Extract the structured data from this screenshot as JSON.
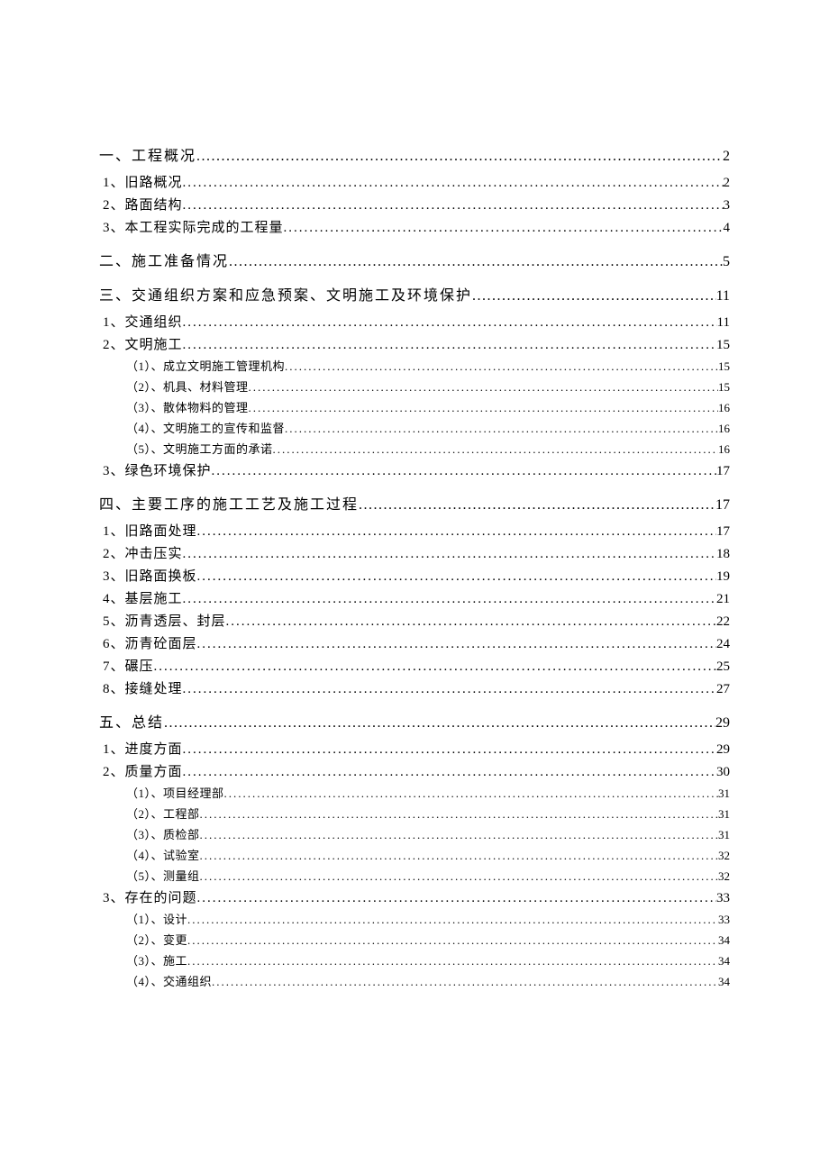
{
  "colors": {
    "text": "#000000",
    "background": "#ffffff"
  },
  "typography": {
    "font_family": "SimSun",
    "level1_fontsize_pt": 12,
    "level2_fontsize_pt": 11,
    "level3_fontsize_pt": 10
  },
  "toc": [
    {
      "level": 1,
      "label": "一、工程概况",
      "page": "2"
    },
    {
      "level": 2,
      "label": "1、旧路概况",
      "page": "2"
    },
    {
      "level": 2,
      "label": "2、路面结构",
      "page": "3"
    },
    {
      "level": 2,
      "label": "3、本工程实际完成的工程量",
      "page": "4"
    },
    {
      "level": 1,
      "label": "二、施工准备情况",
      "page": "5"
    },
    {
      "level": 1,
      "label": "三、交通组织方案和应急预案、文明施工及环境保护",
      "page": "11"
    },
    {
      "level": 2,
      "label": "1、交通组织",
      "page": "11"
    },
    {
      "level": 2,
      "label": "2、文明施工",
      "page": "15"
    },
    {
      "level": 3,
      "label": "（1）、成立文明施工管理机构",
      "page": "15"
    },
    {
      "level": 3,
      "label": "（2）、机具、材料管理",
      "page": "15"
    },
    {
      "level": 3,
      "label": "（3）、散体物料的管理",
      "page": "16"
    },
    {
      "level": 3,
      "label": "（4）、文明施工的宣传和监督",
      "page": "16"
    },
    {
      "level": 3,
      "label": "（5）、文明施工方面的承诺",
      "page": "16"
    },
    {
      "level": 2,
      "label": "3、绿色环境保护",
      "page": "17"
    },
    {
      "level": 1,
      "label": "四、主要工序的施工工艺及施工过程",
      "page": "17"
    },
    {
      "level": 2,
      "label": "1、旧路面处理",
      "page": "17"
    },
    {
      "level": 2,
      "label": "2、冲击压实",
      "page": "18"
    },
    {
      "level": 2,
      "label": "3、旧路面换板",
      "page": "19"
    },
    {
      "level": 2,
      "label": "4、基层施工",
      "page": "21"
    },
    {
      "level": 2,
      "label": "5、沥青透层、封层",
      "page": "22"
    },
    {
      "level": 2,
      "label": "6、沥青砼面层",
      "page": "24"
    },
    {
      "level": 2,
      "label": "7、碾压",
      "page": "25"
    },
    {
      "level": 2,
      "label": "8、接缝处理",
      "page": "27"
    },
    {
      "level": 1,
      "label": "五、总结",
      "page": "29"
    },
    {
      "level": 2,
      "label": "1、进度方面",
      "page": "29"
    },
    {
      "level": 2,
      "label": "2、质量方面",
      "page": "30"
    },
    {
      "level": 3,
      "label": "（1）、项目经理部",
      "page": "31"
    },
    {
      "level": 3,
      "label": "（2）、工程部",
      "page": "31"
    },
    {
      "level": 3,
      "label": "（3）、质检部",
      "page": "31"
    },
    {
      "level": 3,
      "label": "（4）、试验室",
      "page": "32"
    },
    {
      "level": 3,
      "label": "（5）、测量组",
      "page": "32"
    },
    {
      "level": 2,
      "label": "3、存在的问题",
      "page": "33"
    },
    {
      "level": 3,
      "label": "（1）、设计",
      "page": "33"
    },
    {
      "level": 3,
      "label": "（2）、变更",
      "page": "34"
    },
    {
      "level": 3,
      "label": "（3）、施工",
      "page": "34"
    },
    {
      "level": 3,
      "label": "（4）、交通组织",
      "page": "34"
    }
  ]
}
